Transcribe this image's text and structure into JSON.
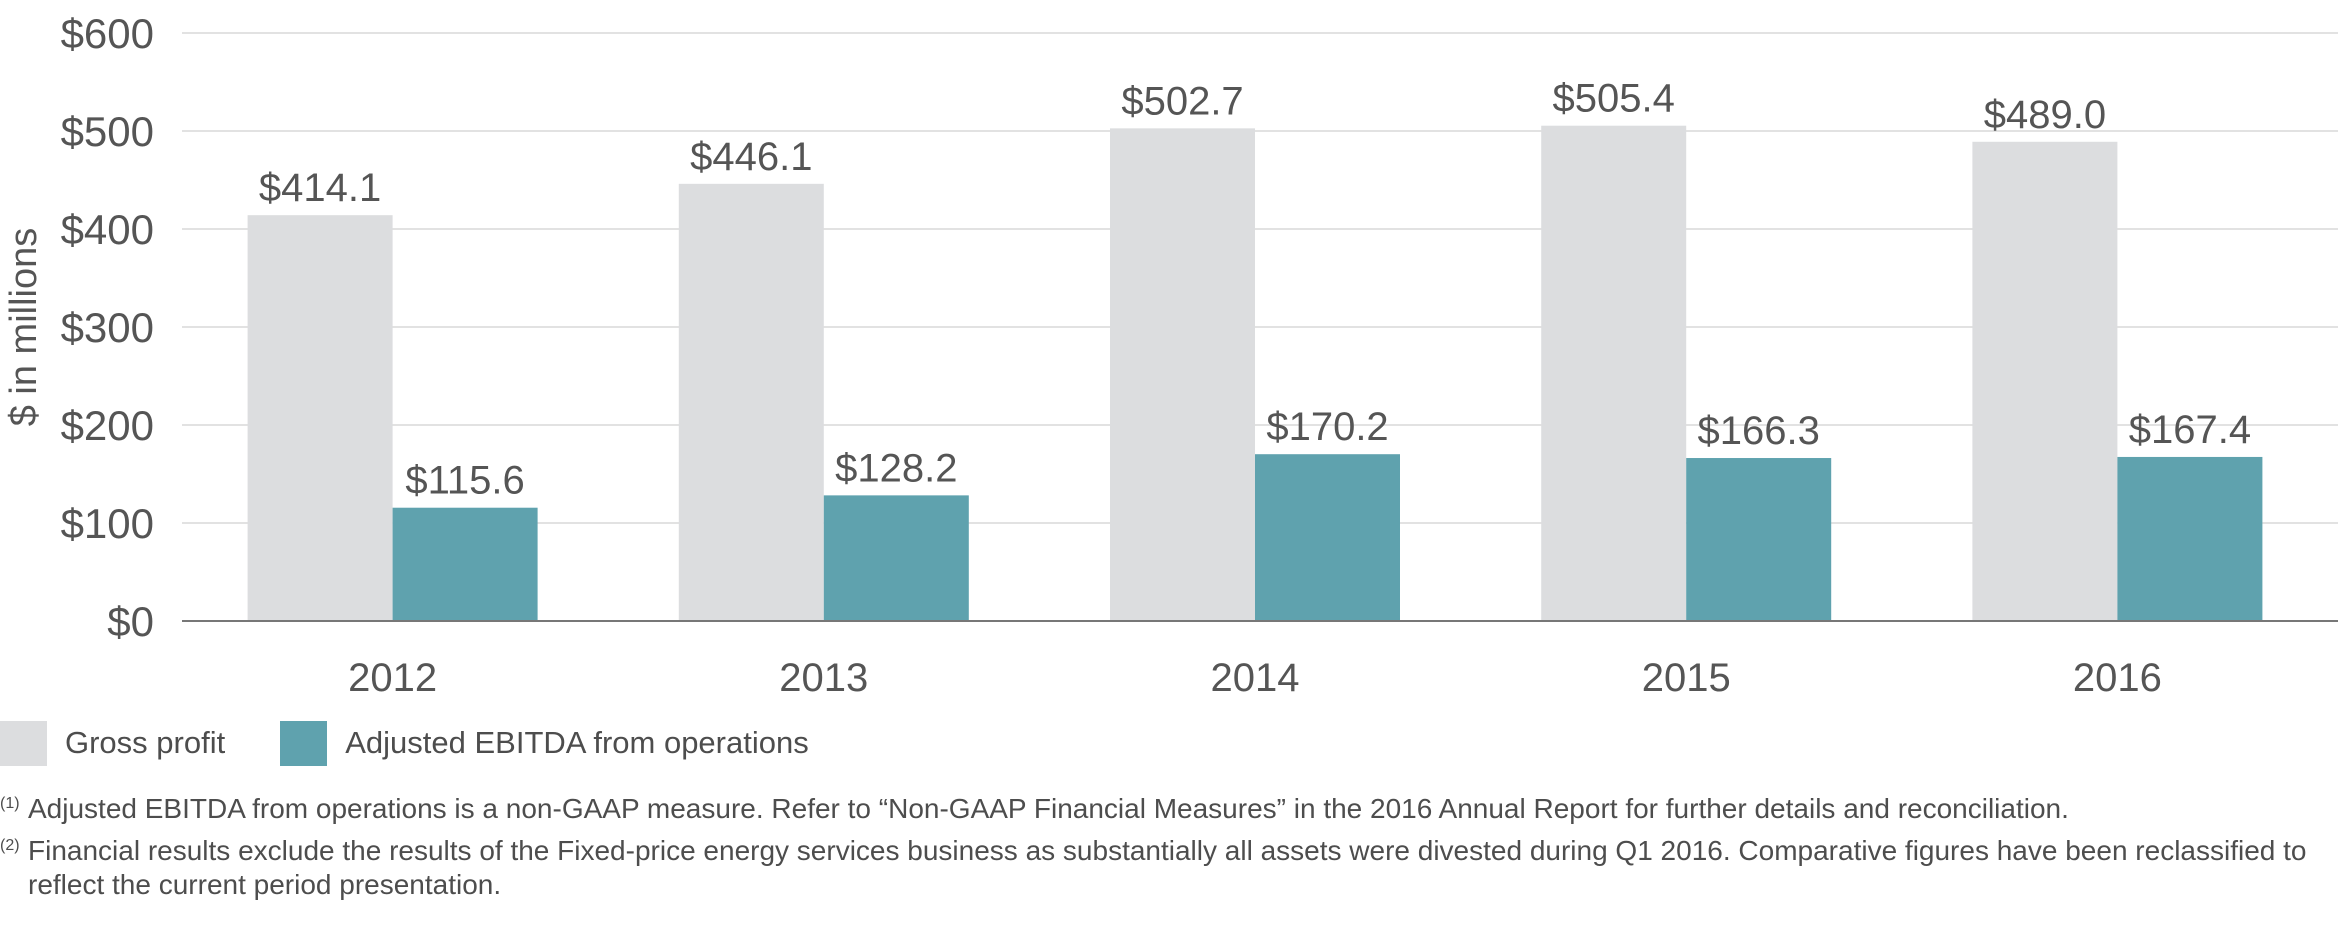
{
  "chart_data": {
    "type": "bar",
    "categories": [
      "2012",
      "2013",
      "2014",
      "2015",
      "2016"
    ],
    "series": [
      {
        "name": "Gross profit",
        "color": "#dcdddf",
        "values": [
          414.1,
          446.1,
          502.7,
          505.4,
          489.0
        ],
        "labels": [
          "$414.1",
          "$446.1",
          "$502.7",
          "$505.4",
          "$489.0"
        ]
      },
      {
        "name": "Adjusted EBITDA from operations",
        "color": "#5fa2ae",
        "values": [
          115.6,
          128.2,
          170.2,
          166.3,
          167.4
        ],
        "labels": [
          "$115.6",
          "$128.2",
          "$170.2",
          "$166.3",
          "$167.4"
        ]
      }
    ],
    "ylabel": "$ in millions",
    "ylim": [
      0,
      600
    ],
    "yticks": [
      0,
      100,
      200,
      300,
      400,
      500,
      600
    ],
    "ytick_labels": [
      "$0",
      "$100",
      "$200",
      "$300",
      "$400",
      "$500",
      "$600"
    ],
    "grid": true,
    "legend_position": "bottom-left"
  },
  "footnotes": [
    {
      "mark": "(1)",
      "text": "Adjusted EBITDA from operations is a non-GAAP measure. Refer to “Non-GAAP Financial Measures” in the 2016 Annual Report for further details and reconciliation."
    },
    {
      "mark": "(2)",
      "text": "Financial results exclude the results of the Fixed-price energy services business as substantially all assets were divested during Q1 2016. Comparative figures have been reclassified to reflect the current period presentation."
    }
  ]
}
